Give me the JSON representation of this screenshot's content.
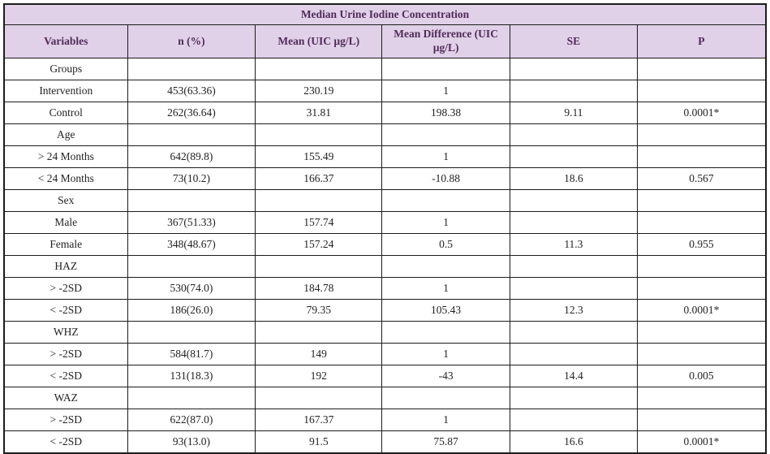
{
  "table": {
    "title": "Median Urine Iodine Concentration",
    "columns": [
      "Variables",
      "n (%)",
      "Mean (UIC µg/L)",
      "Mean Difference (UIC µg/L)",
      "SE",
      "P"
    ],
    "column_keys": [
      "variable",
      "n-percent",
      "mean",
      "mean-difference",
      "se",
      "p"
    ],
    "rows": [
      {
        "type": "group",
        "cells": [
          "Groups",
          "",
          "",
          "",
          "",
          ""
        ]
      },
      {
        "type": "data",
        "cells": [
          "Intervention",
          "453(63.36)",
          "230.19",
          "1",
          "",
          ""
        ]
      },
      {
        "type": "data",
        "cells": [
          "Control",
          "262(36.64)",
          "31.81",
          "198.38",
          "9.11",
          "0.0001*"
        ]
      },
      {
        "type": "group",
        "cells": [
          "Age",
          "",
          "",
          "",
          "",
          ""
        ]
      },
      {
        "type": "data",
        "cells": [
          "> 24 Months",
          "642(89.8)",
          "155.49",
          "1",
          "",
          ""
        ]
      },
      {
        "type": "data",
        "cells": [
          "< 24 Months",
          "73(10.2)",
          "166.37",
          "-10.88",
          "18.6",
          "0.567"
        ]
      },
      {
        "type": "group",
        "cells": [
          "Sex",
          "",
          "",
          "",
          "",
          ""
        ]
      },
      {
        "type": "data",
        "cells": [
          "Male",
          "367(51.33)",
          "157.74",
          "1",
          "",
          ""
        ]
      },
      {
        "type": "data",
        "cells": [
          "Female",
          "348(48.67)",
          "157.24",
          "0.5",
          "11.3",
          "0.955"
        ]
      },
      {
        "type": "group",
        "cells": [
          "HAZ",
          "",
          "",
          "",
          "",
          ""
        ]
      },
      {
        "type": "data",
        "cells": [
          "> -2SD",
          "530(74.0)",
          "184.78",
          "1",
          "",
          ""
        ]
      },
      {
        "type": "data",
        "cells": [
          "< -2SD",
          "186(26.0)",
          "79.35",
          "105.43",
          "12.3",
          "0.0001*"
        ]
      },
      {
        "type": "group",
        "cells": [
          "WHZ",
          "",
          "",
          "",
          "",
          ""
        ]
      },
      {
        "type": "data",
        "cells": [
          "> -2SD",
          "584(81.7)",
          "149",
          "1",
          "",
          ""
        ]
      },
      {
        "type": "data",
        "cells": [
          "< -2SD",
          "131(18.3)",
          "192",
          "-43",
          "14.4",
          "0.005"
        ]
      },
      {
        "type": "group",
        "cells": [
          "WAZ",
          "",
          "",
          "",
          "",
          ""
        ]
      },
      {
        "type": "data",
        "cells": [
          "> -2SD",
          "622(87.0)",
          "167.37",
          "1",
          "",
          ""
        ]
      },
      {
        "type": "data",
        "cells": [
          "< -2SD",
          "93(13.0)",
          "91.5",
          "75.87",
          "16.6",
          "0.0001*"
        ]
      }
    ],
    "colors": {
      "header_background": "#e0d0e8",
      "header_text": "#512b58",
      "body_text": "#222222",
      "border": "#1c1c1c"
    }
  }
}
